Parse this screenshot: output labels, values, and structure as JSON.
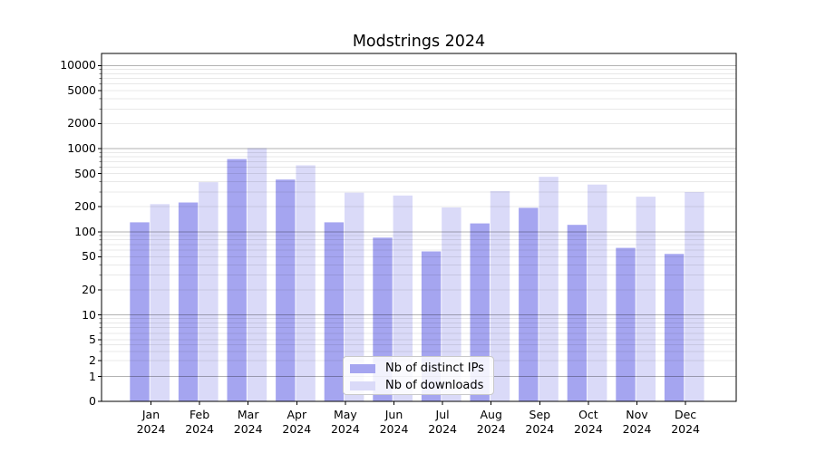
{
  "title": "Modstrings 2024",
  "chart_data": {
    "type": "bar",
    "title": "Modstrings 2024",
    "categories": [
      "Jan 2024",
      "Feb 2024",
      "Mar 2024",
      "Apr 2024",
      "May 2024",
      "Jun 2024",
      "Jul 2024",
      "Aug 2024",
      "Sep 2024",
      "Oct 2024",
      "Nov 2024",
      "Dec 2024"
    ],
    "series": [
      {
        "name": "Nb of distinct IPs",
        "color": "#a5a5f0",
        "values": [
          130,
          225,
          750,
          425,
          130,
          85,
          58,
          126,
          194,
          121,
          64,
          54
        ]
      },
      {
        "name": "Nb of downloads",
        "color": "#dadaf8",
        "values": [
          215,
          395,
          1015,
          630,
          295,
          273,
          196,
          308,
          458,
          370,
          264,
          300
        ]
      }
    ],
    "yscale": "symlog",
    "y_ticks": [
      0,
      1,
      2,
      5,
      10,
      20,
      50,
      100,
      200,
      500,
      1000,
      2000,
      5000,
      10000
    ],
    "ylim": [
      0,
      14000
    ],
    "xlabel": "",
    "ylabel": "",
    "grid": true,
    "legend_position": "lower center inside"
  },
  "colors": {
    "major_grid": "#b3b3b3",
    "minor_grid": "#e8e8e8",
    "spine": "#000000",
    "background": "#ffffff"
  }
}
